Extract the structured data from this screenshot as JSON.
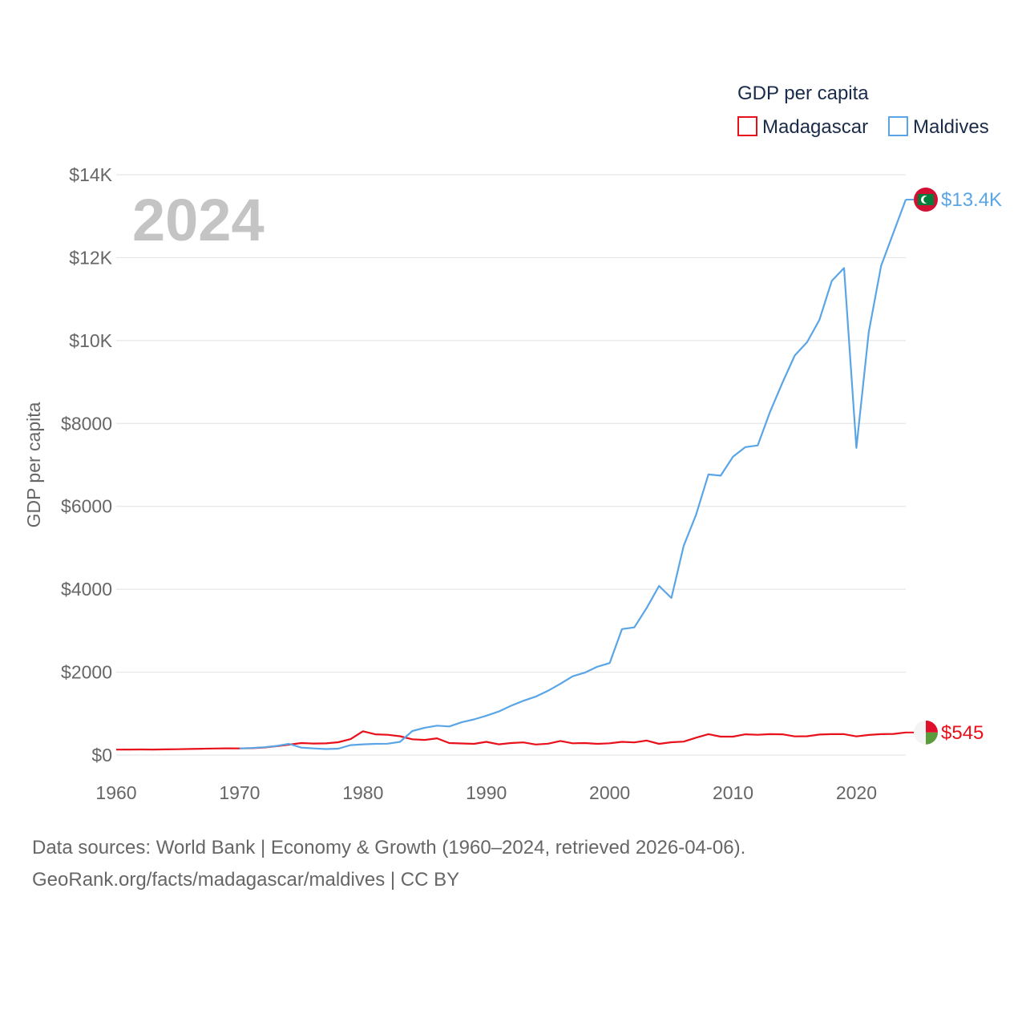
{
  "chart_data": {
    "type": "line",
    "title": "",
    "year_label": "2024",
    "ylabel": "GDP per capita",
    "xlabel": "",
    "xlim": [
      1960,
      2024
    ],
    "ylim": [
      0,
      14000
    ],
    "y_ticks": [
      {
        "value": 0,
        "label": "$0"
      },
      {
        "value": 2000,
        "label": "$2000"
      },
      {
        "value": 4000,
        "label": "$4000"
      },
      {
        "value": 6000,
        "label": "$6000"
      },
      {
        "value": 8000,
        "label": "$8000"
      },
      {
        "value": 10000,
        "label": "$10K"
      },
      {
        "value": 12000,
        "label": "$12K"
      },
      {
        "value": 14000,
        "label": "$14K"
      }
    ],
    "x_ticks": [
      {
        "value": 1960,
        "label": "1960"
      },
      {
        "value": 1970,
        "label": "1970"
      },
      {
        "value": 1980,
        "label": "1980"
      },
      {
        "value": 1990,
        "label": "1990"
      },
      {
        "value": 2000,
        "label": "2000"
      },
      {
        "value": 2010,
        "label": "2010"
      },
      {
        "value": 2020,
        "label": "2020"
      }
    ],
    "grid": true,
    "legend": {
      "title": "GDP per capita",
      "placement": "top-right"
    },
    "series": [
      {
        "name": "Madagascar",
        "color": "#e8101a",
        "end_label": "$545",
        "flag": "madagascar-flag-icon",
        "x": [
          1960,
          1961,
          1962,
          1963,
          1964,
          1965,
          1966,
          1967,
          1968,
          1969,
          1970,
          1971,
          1972,
          1973,
          1974,
          1975,
          1976,
          1977,
          1978,
          1979,
          1980,
          1981,
          1982,
          1983,
          1984,
          1985,
          1986,
          1987,
          1988,
          1989,
          1990,
          1991,
          1992,
          1993,
          1994,
          1995,
          1996,
          1997,
          1998,
          1999,
          2000,
          2001,
          2002,
          2003,
          2004,
          2005,
          2006,
          2007,
          2008,
          2009,
          2010,
          2011,
          2012,
          2013,
          2014,
          2015,
          2016,
          2017,
          2018,
          2019,
          2020,
          2021,
          2022,
          2023,
          2024
        ],
        "values": [
          131,
          133,
          135,
          134,
          138,
          142,
          147,
          152,
          158,
          162,
          161,
          166,
          183,
          215,
          252,
          290,
          278,
          283,
          310,
          385,
          575,
          500,
          490,
          455,
          380,
          365,
          405,
          290,
          280,
          270,
          320,
          260,
          290,
          305,
          255,
          275,
          340,
          285,
          290,
          270,
          285,
          320,
          305,
          350,
          270,
          310,
          325,
          420,
          505,
          445,
          445,
          500,
          490,
          505,
          500,
          450,
          455,
          495,
          505,
          505,
          450,
          485,
          505,
          510,
          545
        ]
      },
      {
        "name": "Maldives",
        "color": "#5aa5e6",
        "end_label": "$13.4K",
        "flag": "maldives-flag-icon",
        "x": [
          1970,
          1971,
          1972,
          1973,
          1974,
          1975,
          1976,
          1977,
          1978,
          1979,
          1980,
          1981,
          1982,
          1983,
          1984,
          1985,
          1986,
          1987,
          1988,
          1989,
          1990,
          1991,
          1992,
          1993,
          1994,
          1995,
          1996,
          1997,
          1998,
          1999,
          2000,
          2001,
          2002,
          2003,
          2004,
          2005,
          2006,
          2007,
          2008,
          2009,
          2010,
          2011,
          2012,
          2013,
          2014,
          2015,
          2016,
          2017,
          2018,
          2019,
          2020,
          2021,
          2022,
          2023,
          2024
        ],
        "values": [
          160,
          170,
          190,
          220,
          270,
          180,
          160,
          145,
          155,
          240,
          260,
          270,
          275,
          320,
          580,
          660,
          710,
          690,
          790,
          860,
          950,
          1050,
          1190,
          1310,
          1410,
          1550,
          1720,
          1900,
          1990,
          2130,
          2220,
          3040,
          3080,
          3550,
          4080,
          3790,
          5050,
          5800,
          6770,
          6740,
          7200,
          7430,
          7470,
          8280,
          8980,
          9640,
          9960,
          10500,
          11440,
          11750,
          7410,
          10200,
          11800,
          12600,
          13400
        ]
      }
    ]
  },
  "footer": {
    "line1": "Data sources: World Bank | Economy & Growth (1960–2024, retrieved 2026-04-06).",
    "line2": "GeoRank.org/facts/madagascar/maldives | CC BY"
  }
}
